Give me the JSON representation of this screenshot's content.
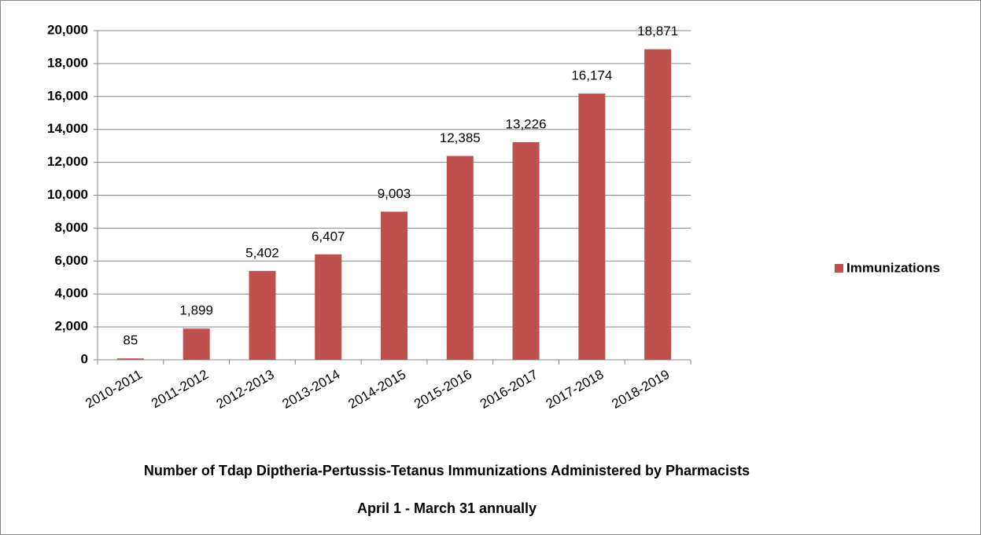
{
  "chart_data": {
    "type": "bar",
    "title": "Number of Tdap Diptheria-Pertussis-Tetanus Immunizations Administered by Pharmacists",
    "subtitle": "April 1 - March 31 annually",
    "categories": [
      "2010-2011",
      "2011-2012",
      "2012-2013",
      "2013-2014",
      "2014-2015",
      "2015-2016",
      "2016-2017",
      "2017-2018",
      "2018-2019"
    ],
    "series": [
      {
        "name": "Immunizations",
        "color": "#c0504d",
        "values": [
          85,
          1899,
          5402,
          6407,
          9003,
          12385,
          13226,
          16174,
          18871
        ],
        "value_labels": [
          "85",
          "1,899",
          "5,402",
          "6,407",
          "9,003",
          "12,385",
          "13,226",
          "16,174",
          "18,871"
        ]
      }
    ],
    "ylim": [
      0,
      20000
    ],
    "yticks": [
      0,
      {
        "value": 2000,
        "label": "2,000"
      },
      {
        "value": 4000,
        "label": "4,000"
      },
      {
        "value": 6000,
        "label": "6,000"
      },
      {
        "value": 8000,
        "label": "8,000"
      },
      {
        "value": 10000,
        "label": "10,000"
      },
      {
        "value": 12000,
        "label": "12,000"
      },
      {
        "value": 14000,
        "label": "14,000"
      },
      {
        "value": 16000,
        "label": "16,000"
      },
      {
        "value": 18000,
        "label": "18,000"
      },
      {
        "value": 20000,
        "label": "20,000"
      }
    ],
    "grid": true,
    "legend": "right"
  }
}
